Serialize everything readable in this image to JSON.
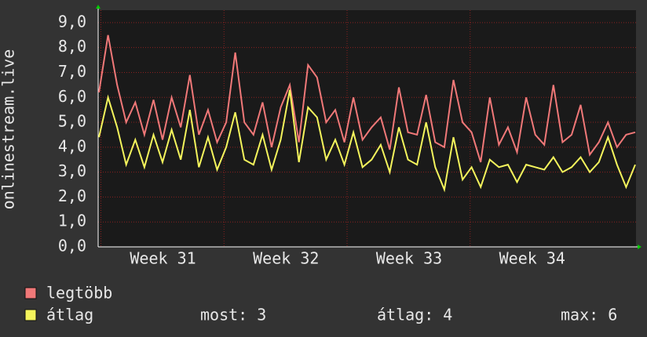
{
  "chart_data": {
    "type": "line",
    "ylabel": "onlinestream.live",
    "xlim": [
      30.48,
      34.85
    ],
    "xticks": [
      {
        "value": 31,
        "label": "Week 31"
      },
      {
        "value": 32,
        "label": "Week 32"
      },
      {
        "value": 33,
        "label": "Week 33"
      },
      {
        "value": 34,
        "label": "Week 34"
      }
    ],
    "ylim": [
      0,
      9.5
    ],
    "yticks": [
      {
        "value": 0,
        "label": "0,0"
      },
      {
        "value": 1,
        "label": "1,0"
      },
      {
        "value": 2,
        "label": "2,0"
      },
      {
        "value": 3,
        "label": "3,0"
      },
      {
        "value": 4,
        "label": "4,0"
      },
      {
        "value": 5,
        "label": "5,0"
      },
      {
        "value": 6,
        "label": "6,0"
      },
      {
        "value": 7,
        "label": "7,0"
      },
      {
        "value": 8,
        "label": "8,0"
      },
      {
        "value": 9,
        "label": "9,0"
      }
    ],
    "grid": true,
    "series": [
      {
        "name": "legtöbb",
        "color": "#f07878",
        "values": [
          6.2,
          8.5,
          6.5,
          5.0,
          5.8,
          4.5,
          5.9,
          4.3,
          6.0,
          4.8,
          6.9,
          4.5,
          5.5,
          4.2,
          5.0,
          7.8,
          5.0,
          4.5,
          5.8,
          4.0,
          5.6,
          6.5,
          4.2,
          7.3,
          6.8,
          5.0,
          5.5,
          4.2,
          6.0,
          4.3,
          4.8,
          5.2,
          3.9,
          6.4,
          4.6,
          4.5,
          6.1,
          4.2,
          4.0,
          6.7,
          5.0,
          4.6,
          3.4,
          6.0,
          4.1,
          4.8,
          3.8,
          6.0,
          4.5,
          4.1,
          6.5,
          4.2,
          4.5,
          5.7,
          3.7,
          4.2,
          5.0,
          4.0,
          4.5,
          4.6
        ]
      },
      {
        "name": "átlag",
        "color": "#f4f45c",
        "values": [
          4.4,
          6.0,
          4.8,
          3.3,
          4.3,
          3.2,
          4.5,
          3.4,
          4.7,
          3.5,
          5.5,
          3.2,
          4.4,
          3.1,
          4.0,
          5.4,
          3.5,
          3.3,
          4.5,
          3.1,
          4.3,
          6.3,
          3.4,
          5.6,
          5.2,
          3.5,
          4.3,
          3.3,
          4.6,
          3.2,
          3.5,
          4.1,
          3.0,
          4.8,
          3.5,
          3.3,
          5.0,
          3.2,
          2.3,
          4.4,
          2.7,
          3.2,
          2.4,
          3.5,
          3.2,
          3.3,
          2.6,
          3.3,
          3.2,
          3.1,
          3.6,
          3.0,
          3.2,
          3.6,
          3.0,
          3.4,
          4.4,
          3.3,
          2.4,
          3.3
        ]
      }
    ],
    "stats": [
      "most: 3",
      "átlag: 4",
      "max: 6"
    ]
  }
}
